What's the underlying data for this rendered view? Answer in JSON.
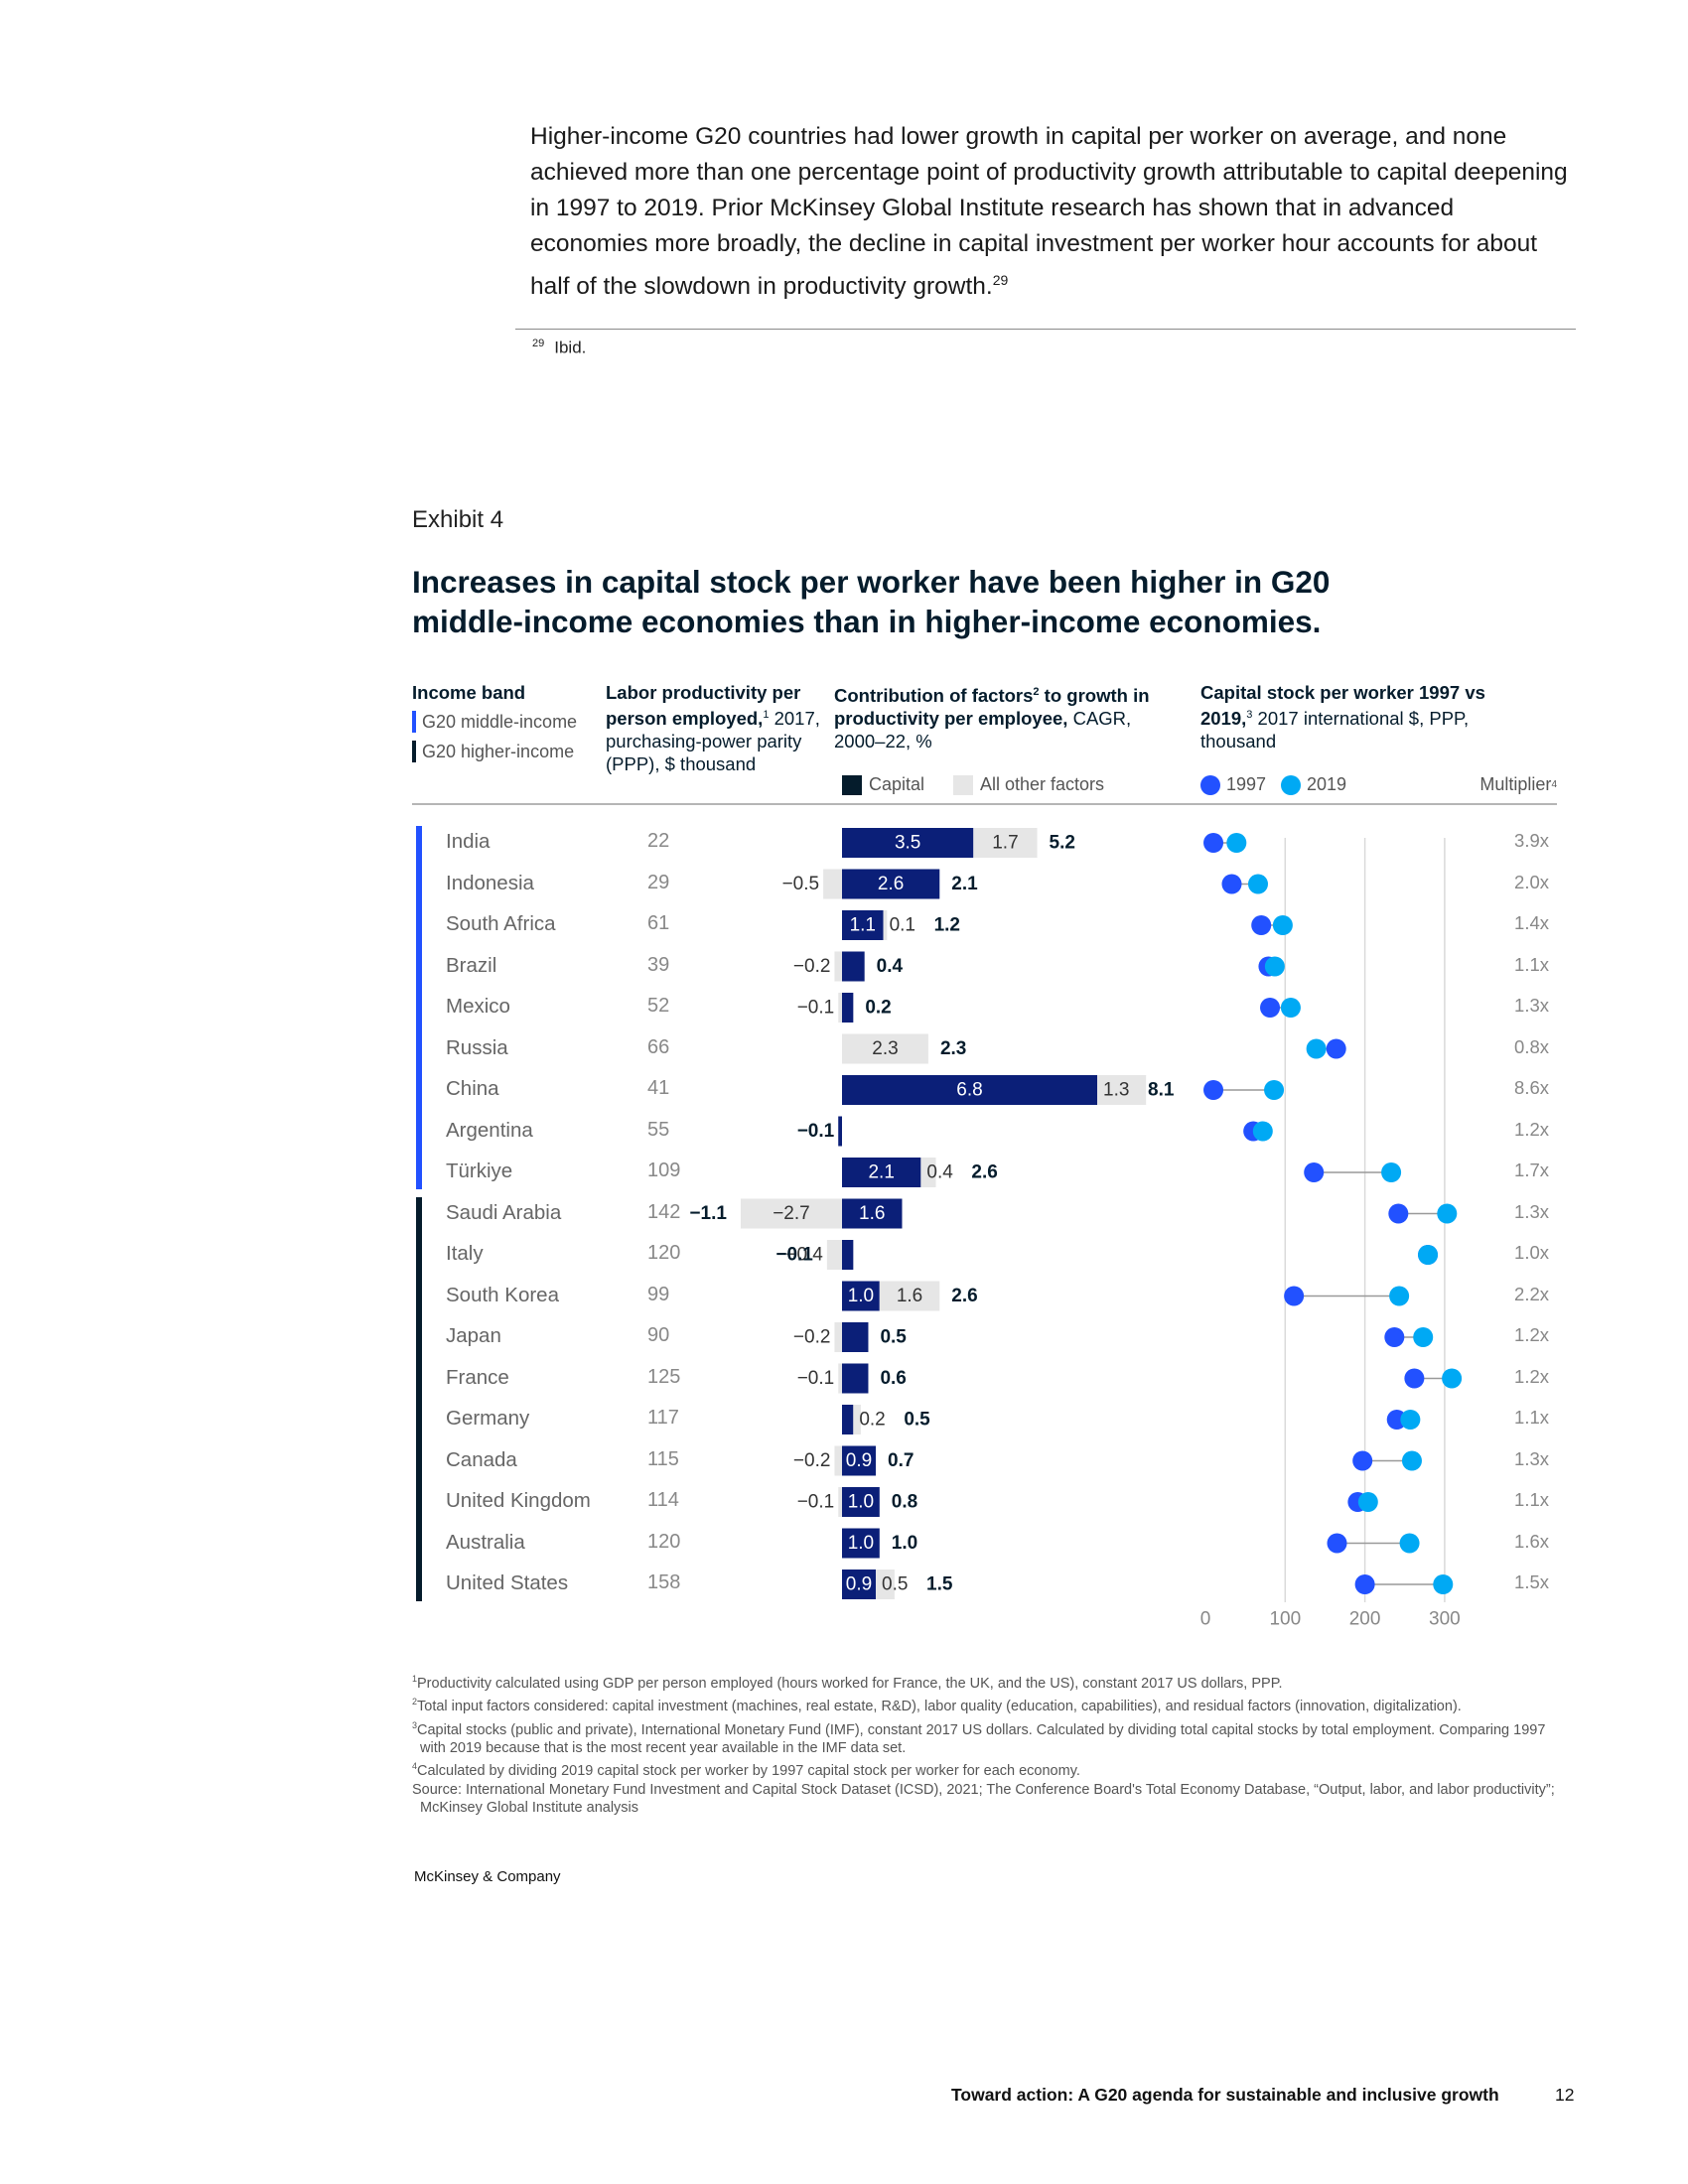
{
  "intro": {
    "text": "Higher-income G20 countries had lower growth in capital per worker on average, and none achieved more than one percentage point of productivity growth attributable to capital deepening in 1997 to 2019. Prior McKinsey Global Institute research has shown that in advanced economies more broadly, the decline in capital investment per worker hour accounts for about half of the slowdown in productivity growth.",
    "ref": "29"
  },
  "footnote29": {
    "num": "29",
    "text": "Ibid."
  },
  "exhibit": {
    "label": "Exhibit 4",
    "title": "Increases in capital stock per worker have been higher in G20 middle-income economies than in higher-income economies."
  },
  "headers": {
    "income_band": "Income band",
    "band_middle": "G20 middle-income",
    "band_higher": "G20 higher-income",
    "lp_title": "Labor productivity per person employed,",
    "lp_ref": "1",
    "lp_sub": "2017, purchasing-power parity (PPP), $ thousand",
    "contrib_title_a": "Contribution of factors",
    "contrib_ref": "2",
    "contrib_title_b": " to growth in productivity per employee,",
    "contrib_sub": " CAGR, 2000–22, %",
    "legend_capital": "Capital",
    "legend_other": "All other factors",
    "cap_title": "Capital stock per worker 1997 vs 2019,",
    "cap_ref": "3",
    "cap_sub": " 2017 international $, PPP, thousand",
    "legend_1997": "1997",
    "legend_2019": "2019",
    "multiplier": "Multiplier",
    "multiplier_ref": "4"
  },
  "colors": {
    "capital": "#0b1f78",
    "other": "#e6e6e6",
    "dot_1997": "#2251ff",
    "dot_2019": "#00a9f4",
    "band_middle": "#2251ff",
    "band_higher": "#051c2c"
  },
  "rows": [
    {
      "country": "India",
      "band": "middle",
      "lp": "22",
      "mult": "3.9x"
    },
    {
      "country": "Indonesia",
      "band": "middle",
      "lp": "29",
      "mult": "2.0x"
    },
    {
      "country": "South Africa",
      "band": "middle",
      "lp": "61",
      "mult": "1.4x"
    },
    {
      "country": "Brazil",
      "band": "middle",
      "lp": "39",
      "mult": "1.1x"
    },
    {
      "country": "Mexico",
      "band": "middle",
      "lp": "52",
      "mult": "1.3x"
    },
    {
      "country": "Russia",
      "band": "middle",
      "lp": "66",
      "mult": "0.8x"
    },
    {
      "country": "China",
      "band": "middle",
      "lp": "41",
      "mult": "8.6x"
    },
    {
      "country": "Argentina",
      "band": "middle",
      "lp": "55",
      "mult": "1.2x"
    },
    {
      "country": "Türkiye",
      "band": "middle",
      "lp": "109",
      "mult": "1.7x"
    },
    {
      "country": "Saudi Arabia",
      "band": "higher",
      "lp": "142",
      "mult": "1.3x"
    },
    {
      "country": "Italy",
      "band": "higher",
      "lp": "120",
      "mult": "1.0x"
    },
    {
      "country": "South Korea",
      "band": "higher",
      "lp": "99",
      "mult": "2.2x"
    },
    {
      "country": "Japan",
      "band": "higher",
      "lp": "90",
      "mult": "1.2x"
    },
    {
      "country": "France",
      "band": "higher",
      "lp": "125",
      "mult": "1.2x"
    },
    {
      "country": "Germany",
      "band": "higher",
      "lp": "117",
      "mult": "1.1x"
    },
    {
      "country": "Canada",
      "band": "higher",
      "lp": "115",
      "mult": "1.3x"
    },
    {
      "country": "United Kingdom",
      "band": "higher",
      "lp": "114",
      "mult": "1.1x"
    },
    {
      "country": "Australia",
      "band": "higher",
      "lp": "120",
      "mult": "1.6x"
    },
    {
      "country": "United States",
      "band": "higher",
      "lp": "158",
      "mult": "1.5x"
    }
  ],
  "chart_data": [
    {
      "type": "bar",
      "stacked": true,
      "title": "Contribution of factors to growth in productivity per employee, CAGR, 2000–22, %",
      "categories": [
        "India",
        "Indonesia",
        "South Africa",
        "Brazil",
        "Mexico",
        "Russia",
        "China",
        "Argentina",
        "Türkiye",
        "Saudi Arabia",
        "Italy",
        "South Korea",
        "Japan",
        "France",
        "Germany",
        "Canada",
        "United Kingdom",
        "Australia",
        "United States"
      ],
      "series": [
        {
          "name": "Capital",
          "values": [
            3.5,
            2.6,
            1.1,
            0.6,
            0.3,
            0.0,
            6.8,
            -0.1,
            2.1,
            1.6,
            0.3,
            1.0,
            0.7,
            0.7,
            0.3,
            0.9,
            1.0,
            1.0,
            0.9
          ]
        },
        {
          "name": "All other factors",
          "values": [
            1.7,
            -0.5,
            0.1,
            -0.2,
            -0.1,
            2.3,
            1.3,
            0.0,
            0.4,
            -2.7,
            -0.4,
            1.6,
            -0.2,
            -0.1,
            0.2,
            -0.2,
            -0.1,
            0.0,
            0.5
          ]
        }
      ],
      "totals": [
        5.2,
        2.1,
        1.2,
        0.4,
        0.2,
        2.3,
        8.1,
        -0.1,
        2.6,
        -1.1,
        -0.1,
        2.6,
        0.5,
        0.6,
        0.5,
        0.7,
        0.8,
        1.0,
        1.5
      ],
      "labels": [
        {
          "cap": "3.5",
          "oth": "1.7",
          "tot": "5.2"
        },
        {
          "cap": "2.6",
          "oth": "−0.5",
          "tot": "2.1"
        },
        {
          "cap": "1.1",
          "oth": "0.1",
          "tot": "1.2"
        },
        {
          "cap": "",
          "oth": "−0.2",
          "tot": "0.4"
        },
        {
          "cap": "",
          "oth": "−0.1",
          "tot": "0.2"
        },
        {
          "cap": "",
          "oth": "2.3",
          "tot": "2.3"
        },
        {
          "cap": "6.8",
          "oth": "1.3",
          "tot": "8.1"
        },
        {
          "cap": "",
          "oth": "",
          "tot": "−0.1"
        },
        {
          "cap": "2.1",
          "oth": "0.4",
          "tot": "2.6"
        },
        {
          "cap": "1.6",
          "oth": "−2.7",
          "tot": "−1.1"
        },
        {
          "cap": "",
          "oth": "−0.4",
          "tot": "−0.1"
        },
        {
          "cap": "1.0",
          "oth": "1.6",
          "tot": "2.6"
        },
        {
          "cap": "",
          "oth": "−0.2",
          "tot": "0.5"
        },
        {
          "cap": "",
          "oth": "−0.1",
          "tot": "0.6"
        },
        {
          "cap": "",
          "oth": "0.2",
          "tot": "0.5"
        },
        {
          "cap": "0.9",
          "oth": "−0.2",
          "tot": "0.7"
        },
        {
          "cap": "1.0",
          "oth": "−0.1",
          "tot": "0.8"
        },
        {
          "cap": "1.0",
          "oth": "",
          "tot": "1.0"
        },
        {
          "cap": "0.9",
          "oth": "0.5",
          "tot": "1.5"
        }
      ]
    },
    {
      "type": "scatter",
      "subtype": "dumbbell",
      "title": "Capital stock per worker 1997 vs 2019, 2017 international $, PPP, thousand",
      "categories": [
        "India",
        "Indonesia",
        "South Africa",
        "Brazil",
        "Mexico",
        "Russia",
        "China",
        "Argentina",
        "Türkiye",
        "Saudi Arabia",
        "Italy",
        "South Korea",
        "Japan",
        "France",
        "Germany",
        "Canada",
        "United Kingdom",
        "Australia",
        "United States"
      ],
      "series": [
        {
          "name": "1997",
          "values": [
            10,
            33,
            70,
            79,
            81,
            164,
            10,
            60,
            136,
            242,
            279,
            111,
            237,
            262,
            240,
            197,
            191,
            165,
            200
          ]
        },
        {
          "name": "2019",
          "values": [
            39,
            66,
            97,
            87,
            107,
            139,
            86,
            72,
            233,
            303,
            279,
            243,
            273,
            309,
            257,
            259,
            204,
            256,
            298
          ]
        }
      ],
      "xlim": [
        0,
        330
      ],
      "xticks": [
        0,
        100,
        200,
        300
      ],
      "grid": "vertical"
    }
  ],
  "notes": [
    {
      "ref": "1",
      "text": "Productivity calculated using GDP per person employed (hours worked for France, the UK, and the US), constant 2017 US dollars, PPP."
    },
    {
      "ref": "2",
      "text": "Total input factors considered: capital investment (machines, real estate, R&D), labor quality (education, capabilities), and residual factors (innovation, digitalization)."
    },
    {
      "ref": "3",
      "text": "Capital stocks (public and private), International Monetary Fund (IMF), constant 2017 US dollars. Calculated by dividing total capital stocks by total employment. Comparing 1997 with 2019 because that is the most recent year available in the IMF data set."
    },
    {
      "ref": "4",
      "text": "Calculated by dividing 2019 capital stock per worker by 1997 capital stock per worker for each economy."
    },
    {
      "ref": "",
      "text": "Source: International Monetary Fund Investment and Capital Stock Dataset (ICSD), 2021; The Conference Board's Total Economy Database, “Output, labor, and labor productivity”; McKinsey Global Institute analysis"
    }
  ],
  "brand": "McKinsey & Company",
  "footer": {
    "title": "Toward action: A G20 agenda for sustainable and inclusive growth",
    "page": "12"
  }
}
